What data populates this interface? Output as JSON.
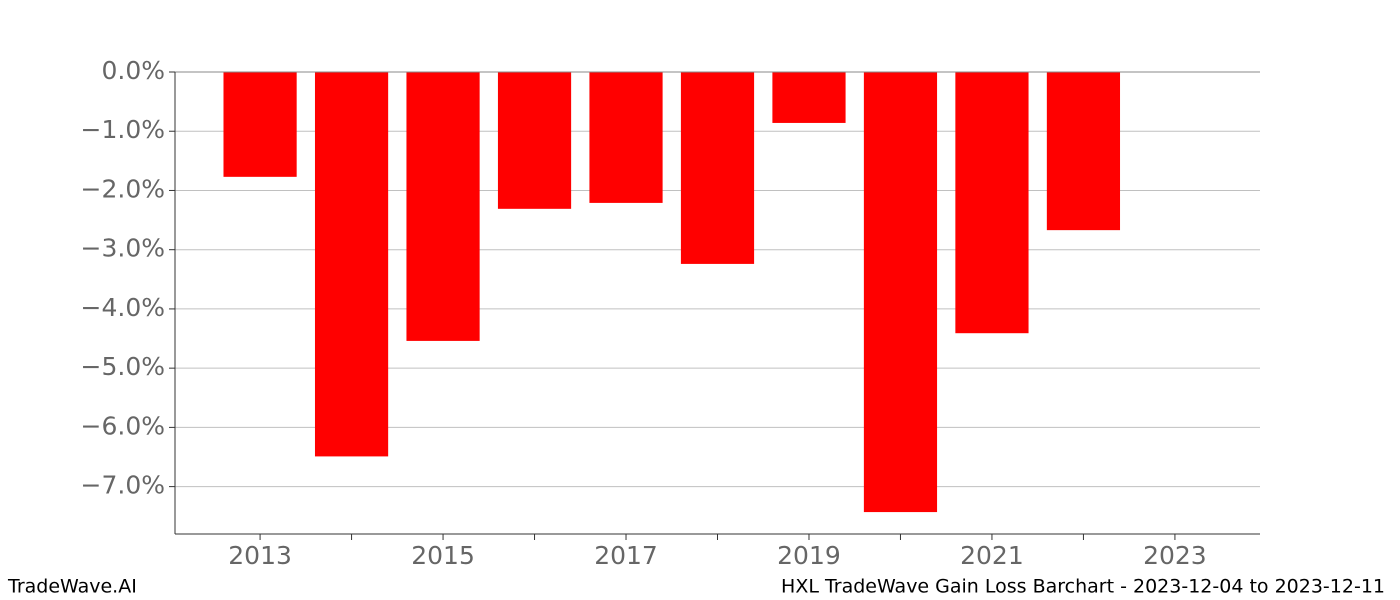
{
  "chart_data": {
    "type": "bar",
    "x": [
      2013,
      2014,
      2015,
      2016,
      2017,
      2018,
      2019,
      2020,
      2021,
      2022
    ],
    "values": [
      -1.77,
      -6.49,
      -4.54,
      -2.31,
      -2.21,
      -3.24,
      -0.86,
      -7.43,
      -4.41,
      -2.67
    ],
    "color": "#ff0000",
    "xlim": [
      2012.07,
      2023.93
    ],
    "xticks": [
      2013,
      2015,
      2017,
      2019,
      2021,
      2023
    ],
    "xminorticks": [
      2014,
      2016,
      2018,
      2020,
      2022
    ],
    "ylim": [
      -7.8,
      0
    ],
    "yticks": [
      {
        "value": 0,
        "label": "0.0%"
      },
      {
        "value": -1,
        "label": "−1.0%"
      },
      {
        "value": -2,
        "label": "−2.0%"
      },
      {
        "value": -3,
        "label": "−3.0%"
      },
      {
        "value": -4,
        "label": "−4.0%"
      },
      {
        "value": -5,
        "label": "−5.0%"
      },
      {
        "value": -6,
        "label": "−6.0%"
      },
      {
        "value": -7,
        "label": "−7.0%"
      }
    ],
    "grid": true,
    "footer_left": "TradeWave.AI",
    "footer_right": "HXL TradeWave Gain Loss Barchart - 2023-12-04 to 2023-12-11"
  }
}
